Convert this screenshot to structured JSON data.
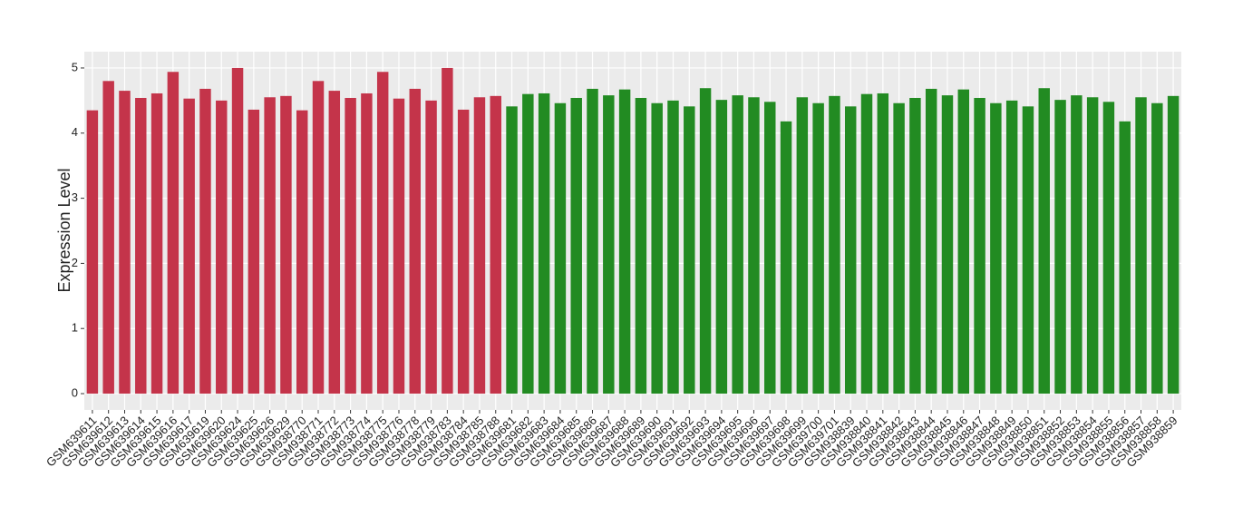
{
  "chart_data": {
    "type": "bar",
    "y_label": "Expression Level",
    "categories": [
      "GSM639611",
      "GSM639612",
      "GSM639613",
      "GSM639614",
      "GSM639615",
      "GSM639616",
      "GSM639617",
      "GSM639619",
      "GSM639620",
      "GSM639624",
      "GSM639625",
      "GSM639626",
      "GSM639629",
      "GSM938770",
      "GSM938771",
      "GSM938772",
      "GSM938773",
      "GSM938774",
      "GSM938775",
      "GSM938776",
      "GSM938778",
      "GSM938779",
      "GSM938783",
      "GSM938784",
      "GSM938785",
      "GSM938788",
      "GSM639681",
      "GSM639682",
      "GSM639683",
      "GSM639684",
      "GSM639685",
      "GSM639686",
      "GSM639687",
      "GSM639688",
      "GSM639689",
      "GSM639690",
      "GSM639691",
      "GSM639692",
      "GSM639693",
      "GSM639694",
      "GSM639695",
      "GSM639696",
      "GSM639697",
      "GSM639698",
      "GSM639699",
      "GSM639700",
      "GSM639701",
      "GSM938839",
      "GSM938840",
      "GSM938841",
      "GSM938842",
      "GSM938843",
      "GSM938844",
      "GSM938845",
      "GSM938846",
      "GSM938847",
      "GSM938848",
      "GSM938849",
      "GSM938850",
      "GSM938851",
      "GSM938852",
      "GSM938853",
      "GSM938854",
      "GSM938855",
      "GSM938856",
      "GSM938857",
      "GSM938858",
      "GSM938859"
    ],
    "values": [
      4.35,
      4.8,
      4.65,
      4.54,
      4.61,
      4.94,
      4.53,
      4.68,
      4.5,
      5.0,
      4.36,
      4.55,
      4.57,
      4.35,
      4.8,
      4.65,
      4.54,
      4.61,
      4.94,
      4.53,
      4.68,
      4.5,
      5.0,
      4.36,
      4.55,
      4.57,
      4.41,
      4.6,
      4.61,
      4.46,
      4.54,
      4.68,
      4.58,
      4.67,
      4.54,
      4.46,
      4.5,
      4.41,
      4.69,
      4.51,
      4.58,
      4.55,
      4.48,
      4.18,
      4.55,
      4.46,
      4.57,
      4.41,
      4.6,
      4.61,
      4.46,
      4.54,
      4.68,
      4.58,
      4.67,
      4.54,
      4.46,
      4.5,
      4.41,
      4.69,
      4.51,
      4.58,
      4.55,
      4.48,
      4.18,
      4.55,
      4.46,
      4.57
    ],
    "colors": [
      "#c4344a",
      "#c4344a",
      "#c4344a",
      "#c4344a",
      "#c4344a",
      "#c4344a",
      "#c4344a",
      "#c4344a",
      "#c4344a",
      "#c4344a",
      "#c4344a",
      "#c4344a",
      "#c4344a",
      "#c4344a",
      "#c4344a",
      "#c4344a",
      "#c4344a",
      "#c4344a",
      "#c4344a",
      "#c4344a",
      "#c4344a",
      "#c4344a",
      "#c4344a",
      "#c4344a",
      "#c4344a",
      "#c4344a",
      "#228b22",
      "#228b22",
      "#228b22",
      "#228b22",
      "#228b22",
      "#228b22",
      "#228b22",
      "#228b22",
      "#228b22",
      "#228b22",
      "#228b22",
      "#228b22",
      "#228b22",
      "#228b22",
      "#228b22",
      "#228b22",
      "#228b22",
      "#228b22",
      "#228b22",
      "#228b22",
      "#228b22",
      "#228b22",
      "#228b22",
      "#228b22",
      "#228b22",
      "#228b22",
      "#228b22",
      "#228b22",
      "#228b22",
      "#228b22",
      "#228b22",
      "#228b22",
      "#228b22",
      "#228b22",
      "#228b22",
      "#228b22",
      "#228b22",
      "#228b22",
      "#228b22",
      "#228b22",
      "#228b22",
      "#228b22"
    ],
    "ylim": [
      -0.25,
      5.25
    ],
    "yticks": [
      0,
      1,
      2,
      3,
      4,
      5
    ],
    "grid": true
  }
}
